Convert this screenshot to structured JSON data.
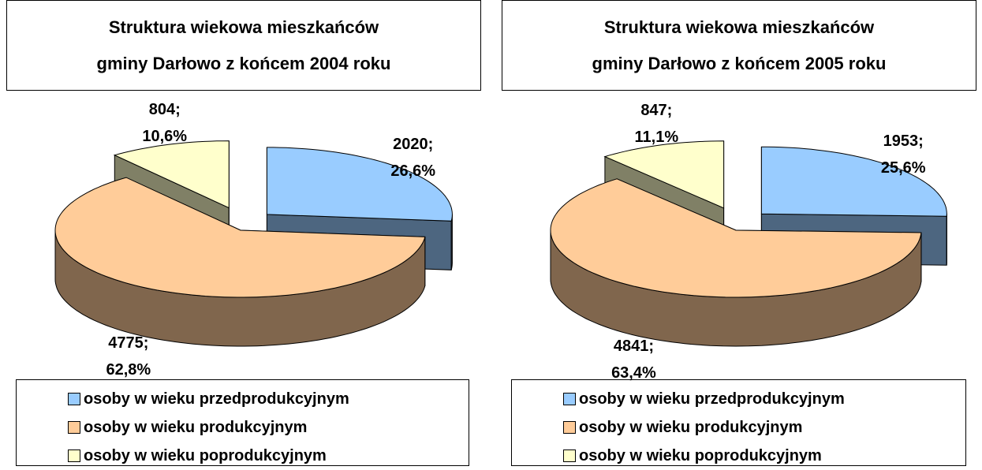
{
  "chart_data": [
    {
      "type": "pie3d",
      "title": "Struktura wiekowa mieszkańców gminy Darłowo z końcem 2004 roku",
      "categories": [
        "osoby w wieku przedprodukcyjnym",
        "osoby w wieku produkcyjnym",
        "osoby w wieku poprodukcyjnym"
      ],
      "values": [
        2020,
        4775,
        804
      ],
      "value_labels": [
        "2020; 26,6%",
        "4775; 62,8%",
        "804; 10,6%"
      ],
      "colors": [
        "#99ccff",
        "#ffcc99",
        "#ffffcc"
      ],
      "legend": "bottom"
    },
    {
      "type": "pie3d",
      "title": "Struktura wiekowa mieszkańców gminy Darłowo z końcem 2005 roku",
      "categories": [
        "osoby w wieku przedprodukcyjnym",
        "osoby w wieku produkcyjnym",
        "osoby w wieku poprodukcyjnym"
      ],
      "values": [
        1953,
        4841,
        847
      ],
      "value_labels": [
        "1953; 25,6%",
        "4841; 63,4%",
        "847; 11,1%"
      ],
      "colors": [
        "#99ccff",
        "#ffcc99",
        "#ffffcc"
      ],
      "legend": "bottom"
    }
  ]
}
